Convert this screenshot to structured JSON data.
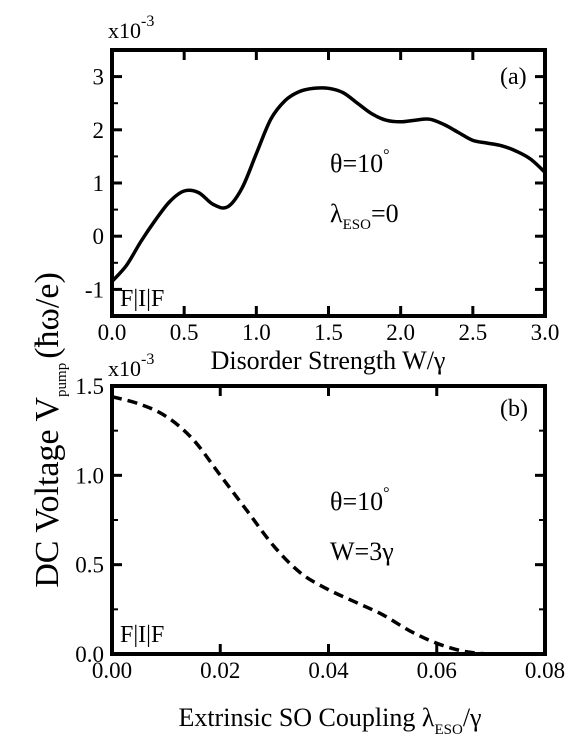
{
  "ylabel": {
    "main": "DC Voltage V",
    "sub": "pump",
    "unit": "(ħω/e)"
  },
  "chart_data": [
    {
      "type": "line",
      "panel": "(a)",
      "multiplier": {
        "base": "x10",
        "exp": "-3"
      },
      "xlabel": "Disorder Strength W/γ",
      "xlim": [
        0.0,
        3.0
      ],
      "ylim": [
        -1.5,
        3.5
      ],
      "xticks": [
        "0.0",
        "0.5",
        "1.0",
        "1.5",
        "2.0",
        "2.5",
        "3.0"
      ],
      "yticks": [
        "-1",
        "0",
        "1",
        "2",
        "3"
      ],
      "annotations": [
        {
          "text": "θ=10",
          "sup": "°"
        },
        {
          "text": "λ",
          "sub": "ESO",
          "tail": "=0"
        }
      ],
      "corner_label": "F|I|F",
      "line_style": "solid",
      "series": [
        {
          "x": [
            0.0,
            0.1,
            0.2,
            0.3,
            0.4,
            0.5,
            0.6,
            0.7,
            0.8,
            0.9,
            1.0,
            1.1,
            1.2,
            1.3,
            1.4,
            1.5,
            1.6,
            1.7,
            1.8,
            1.9,
            2.0,
            2.1,
            2.2,
            2.3,
            2.4,
            2.5,
            2.6,
            2.7,
            2.8,
            2.9,
            3.0
          ],
          "y": [
            -0.85,
            -0.55,
            -0.1,
            0.3,
            0.65,
            0.85,
            0.82,
            0.6,
            0.55,
            0.9,
            1.55,
            2.2,
            2.55,
            2.72,
            2.78,
            2.78,
            2.7,
            2.5,
            2.3,
            2.18,
            2.15,
            2.18,
            2.2,
            2.1,
            1.95,
            1.8,
            1.75,
            1.7,
            1.6,
            1.45,
            1.2
          ]
        }
      ]
    },
    {
      "type": "line",
      "panel": "(b)",
      "multiplier": {
        "base": "x10",
        "exp": "-3"
      },
      "xlabel": "Extrinsic SO Coupling λ",
      "xlabel_sub": "ESO",
      "xlabel_tail": "/γ",
      "xlim": [
        0.0,
        0.08
      ],
      "ylim": [
        0.0,
        1.5
      ],
      "xticks": [
        "0.00",
        "0.02",
        "0.04",
        "0.06",
        "0.08"
      ],
      "yticks": [
        "0.0",
        "0.5",
        "1.0",
        "1.5"
      ],
      "annotations": [
        {
          "text": "θ=10",
          "sup": "°"
        },
        {
          "text": "W=3γ"
        }
      ],
      "corner_label": "F|I|F",
      "line_style": "dashed",
      "series": [
        {
          "x": [
            0.0,
            0.005,
            0.01,
            0.015,
            0.02,
            0.025,
            0.03,
            0.035,
            0.04,
            0.045,
            0.05,
            0.055,
            0.06,
            0.065,
            0.07,
            0.075,
            0.08
          ],
          "y": [
            1.44,
            1.4,
            1.33,
            1.2,
            1.0,
            0.8,
            0.6,
            0.45,
            0.36,
            0.29,
            0.22,
            0.13,
            0.06,
            0.015,
            0.0,
            0.0,
            0.0
          ]
        }
      ]
    }
  ]
}
